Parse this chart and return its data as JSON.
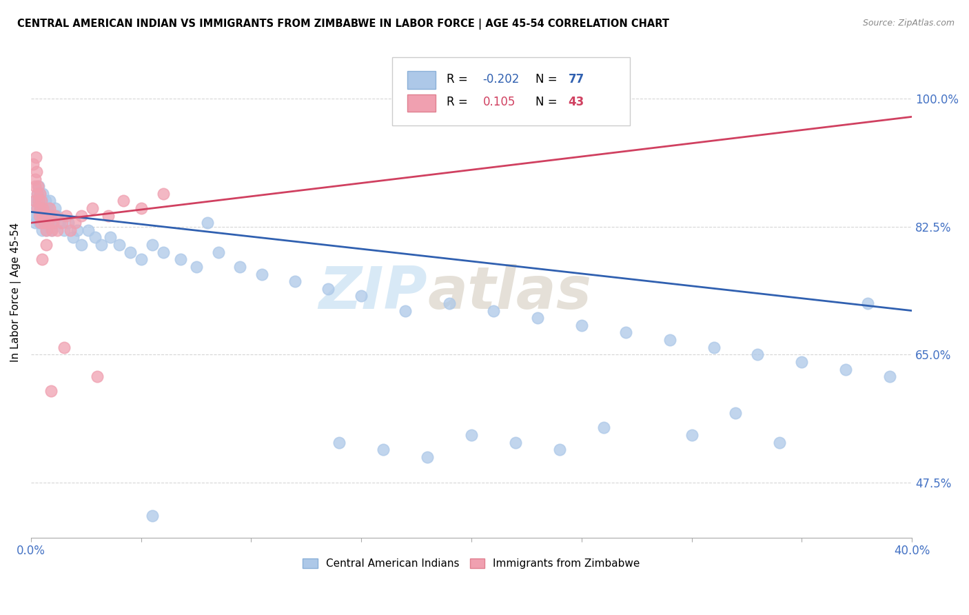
{
  "title": "CENTRAL AMERICAN INDIAN VS IMMIGRANTS FROM ZIMBABWE IN LABOR FORCE | AGE 45-54 CORRELATION CHART",
  "source": "Source: ZipAtlas.com",
  "ylabel_label": "In Labor Force | Age 45-54",
  "legend_blue_rval": "-0.202",
  "legend_blue_nval": "77",
  "legend_pink_rval": "0.105",
  "legend_pink_nval": "43",
  "blue_color": "#adc8e8",
  "pink_color": "#f0a0b0",
  "blue_line_color": "#3060b0",
  "pink_line_color": "#d04060",
  "watermark_zip": "ZIP",
  "watermark_atlas": "atlas",
  "xmin": 0.0,
  "xmax": 40.0,
  "ymin": 40.0,
  "ymax": 107.0,
  "ytick_vals": [
    47.5,
    65.0,
    82.5,
    100.0
  ],
  "blue_trend_x": [
    0.0,
    40.0
  ],
  "blue_trend_y": [
    84.5,
    71.0
  ],
  "pink_trend_x": [
    0.0,
    40.0
  ],
  "pink_trend_y": [
    83.0,
    97.5
  ],
  "blue_x": [
    0.15,
    0.18,
    0.2,
    0.25,
    0.28,
    0.3,
    0.32,
    0.35,
    0.38,
    0.4,
    0.42,
    0.45,
    0.48,
    0.5,
    0.52,
    0.55,
    0.6,
    0.62,
    0.65,
    0.68,
    0.7,
    0.75,
    0.8,
    0.85,
    0.9,
    0.95,
    1.0,
    1.1,
    1.2,
    1.3,
    1.5,
    1.7,
    1.9,
    2.1,
    2.3,
    2.6,
    2.9,
    3.2,
    3.6,
    4.0,
    4.5,
    5.0,
    5.5,
    6.0,
    6.8,
    7.5,
    8.5,
    9.5,
    10.5,
    12.0,
    13.5,
    15.0,
    17.0,
    19.0,
    21.0,
    23.0,
    25.0,
    27.0,
    29.0,
    31.0,
    33.0,
    35.0,
    37.0,
    39.0,
    14.0,
    18.0,
    22.0,
    26.0,
    30.0,
    34.0,
    38.0,
    8.0,
    16.0,
    24.0,
    32.0,
    5.5,
    20.0
  ],
  "blue_y": [
    84.0,
    86.0,
    83.0,
    85.0,
    87.0,
    84.0,
    86.0,
    88.0,
    83.0,
    85.0,
    87.0,
    84.0,
    86.0,
    82.0,
    84.0,
    87.0,
    85.0,
    83.0,
    86.0,
    84.0,
    82.0,
    85.0,
    83.0,
    86.0,
    84.0,
    82.0,
    83.0,
    85.0,
    84.0,
    83.0,
    82.0,
    83.0,
    81.0,
    82.0,
    80.0,
    82.0,
    81.0,
    80.0,
    81.0,
    80.0,
    79.0,
    78.0,
    80.0,
    79.0,
    78.0,
    77.0,
    79.0,
    77.0,
    76.0,
    75.0,
    74.0,
    73.0,
    71.0,
    72.0,
    71.0,
    70.0,
    69.0,
    68.0,
    67.0,
    66.0,
    65.0,
    64.0,
    63.0,
    62.0,
    53.0,
    51.0,
    53.0,
    55.0,
    54.0,
    53.0,
    72.0,
    83.0,
    52.0,
    52.0,
    57.0,
    43.0,
    54.0
  ],
  "pink_x": [
    0.1,
    0.15,
    0.18,
    0.2,
    0.22,
    0.25,
    0.28,
    0.3,
    0.32,
    0.35,
    0.38,
    0.4,
    0.42,
    0.45,
    0.48,
    0.5,
    0.55,
    0.6,
    0.65,
    0.7,
    0.75,
    0.8,
    0.85,
    0.9,
    0.95,
    1.0,
    1.1,
    1.2,
    1.4,
    1.6,
    1.8,
    2.0,
    2.3,
    2.8,
    3.5,
    4.2,
    5.0,
    6.0,
    0.5,
    0.7,
    0.9,
    1.5,
    3.0
  ],
  "pink_y": [
    91.0,
    86.0,
    89.0,
    88.0,
    92.0,
    90.0,
    87.0,
    85.0,
    88.0,
    86.0,
    84.0,
    87.0,
    85.0,
    83.0,
    86.0,
    84.0,
    85.0,
    83.0,
    84.0,
    82.0,
    84.0,
    83.0,
    85.0,
    84.0,
    82.0,
    83.0,
    84.0,
    82.0,
    83.0,
    84.0,
    82.0,
    83.0,
    84.0,
    85.0,
    84.0,
    86.0,
    85.0,
    87.0,
    78.0,
    80.0,
    60.0,
    66.0,
    62.0
  ]
}
